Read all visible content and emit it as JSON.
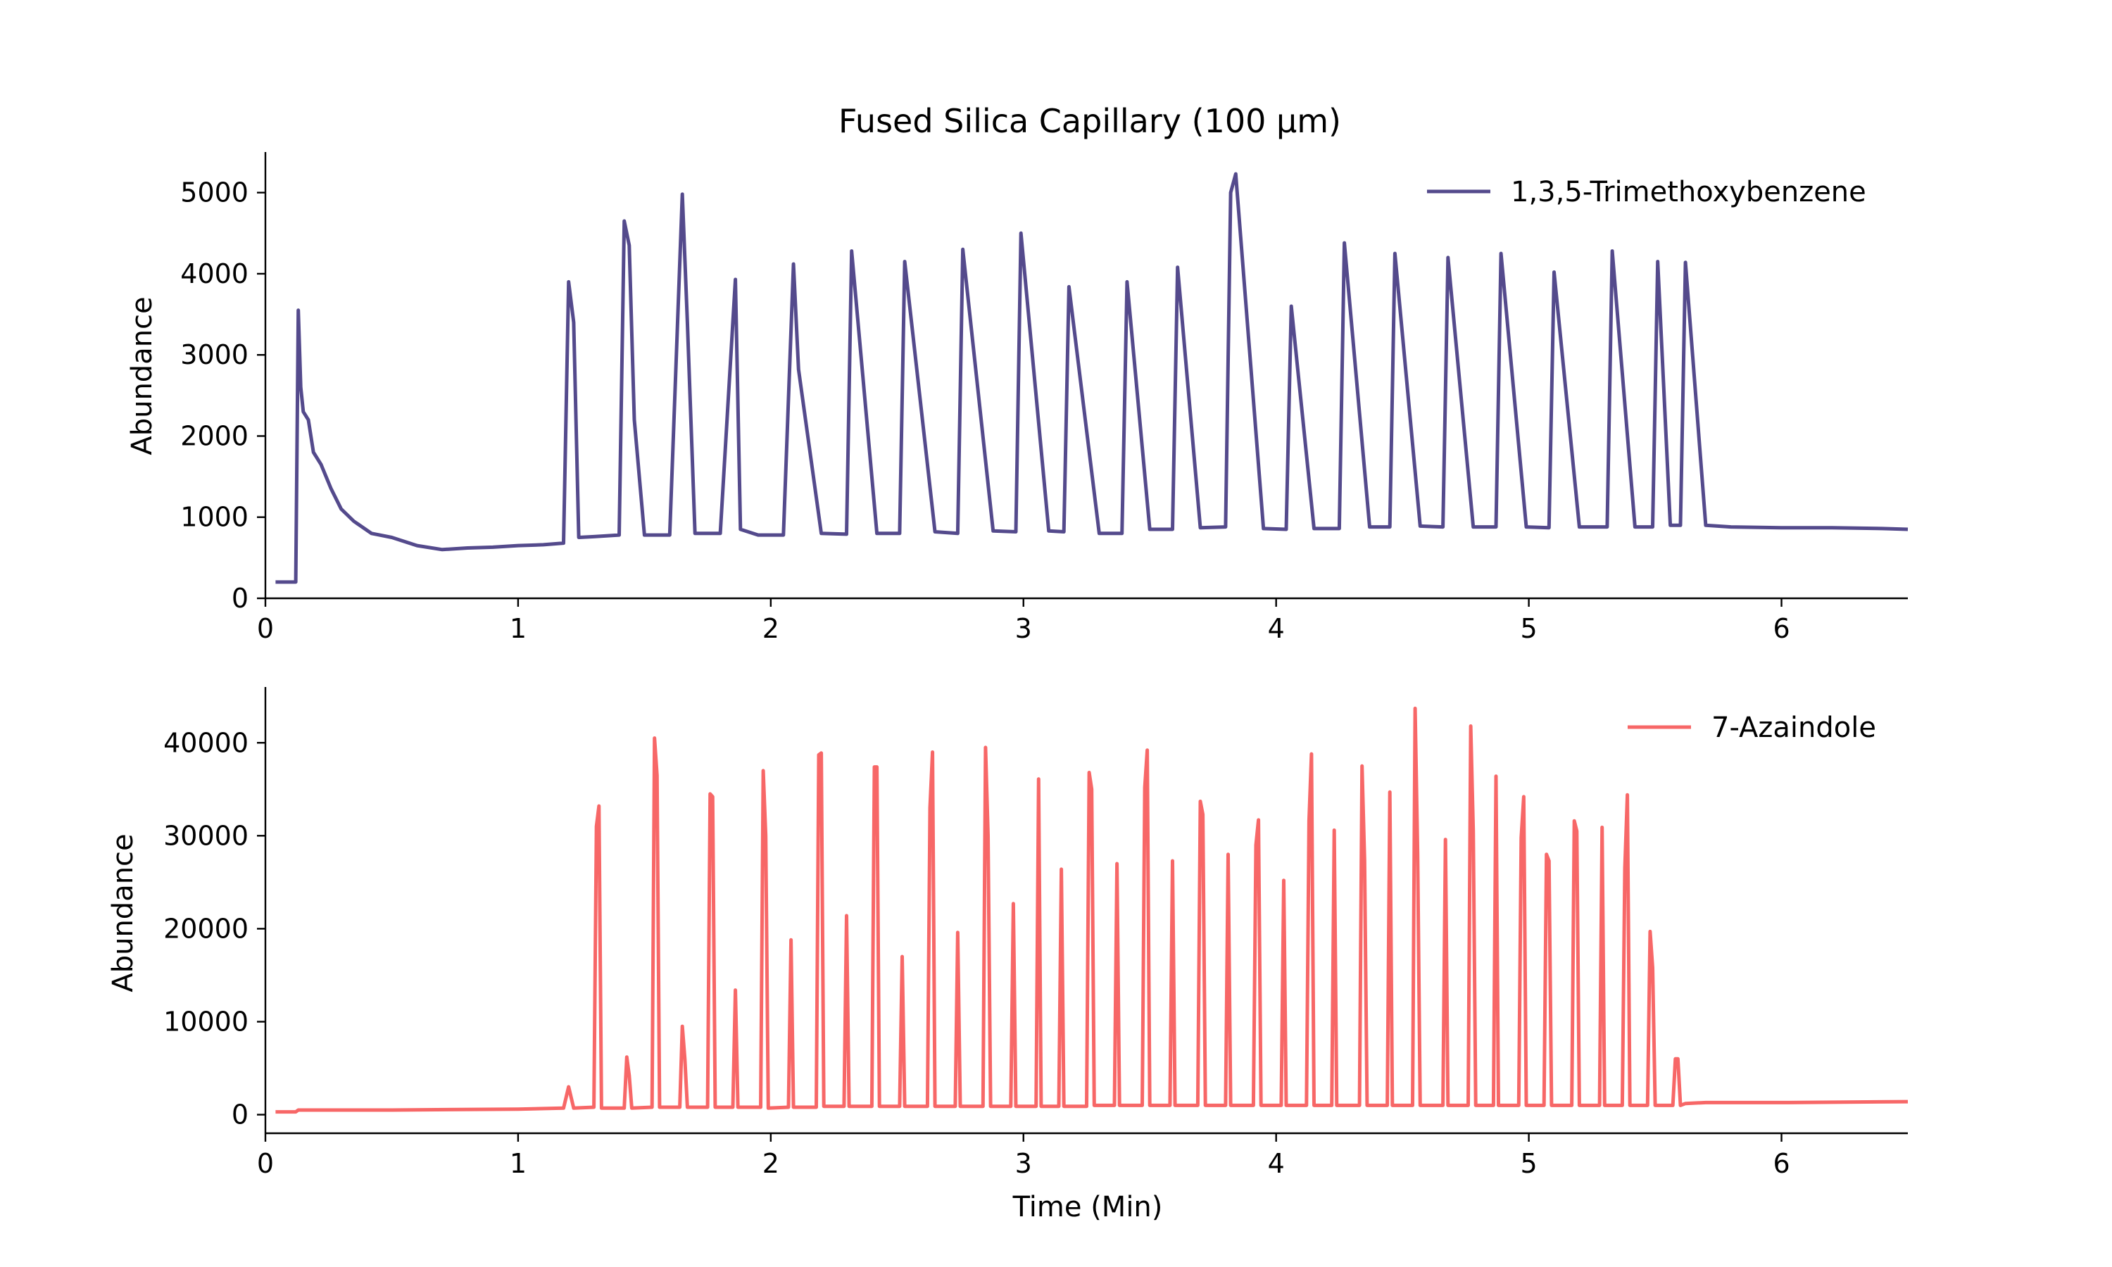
{
  "chart_data": {
    "type": "line",
    "title": "Fused Silica Capillary (100 µm)",
    "xlabel": "Time (Min)",
    "xlim": [
      0,
      6.5
    ],
    "xticks": [
      0,
      1,
      2,
      3,
      4,
      5,
      6
    ],
    "panels": [
      {
        "ylabel": "Abundance",
        "ylim": [
          0,
          5500
        ],
        "yticks": [
          0,
          1000,
          2000,
          3000,
          4000,
          5000
        ],
        "legend_position": "top-right",
        "series": [
          {
            "name": "1,3,5-Trimethoxybenzene",
            "color": "#544a8c",
            "x": [
              0.04,
              0.12,
              0.13,
              0.14,
              0.15,
              0.17,
              0.19,
              0.22,
              0.26,
              0.3,
              0.35,
              0.42,
              0.5,
              0.6,
              0.7,
              0.8,
              0.9,
              1.0,
              1.1,
              1.18,
              1.2,
              1.22,
              1.24,
              1.3,
              1.4,
              1.42,
              1.44,
              1.46,
              1.5,
              1.6,
              1.65,
              1.67,
              1.7,
              1.8,
              1.86,
              1.88,
              1.95,
              2.05,
              2.09,
              2.11,
              2.2,
              2.3,
              2.32,
              2.42,
              2.51,
              2.53,
              2.65,
              2.74,
              2.76,
              2.88,
              2.97,
              2.99,
              3.1,
              3.16,
              3.18,
              3.3,
              3.39,
              3.41,
              3.5,
              3.59,
              3.61,
              3.7,
              3.8,
              3.82,
              3.84,
              3.95,
              4.04,
              4.06,
              4.15,
              4.25,
              4.27,
              4.37,
              4.45,
              4.47,
              4.57,
              4.66,
              4.68,
              4.78,
              4.87,
              4.89,
              4.99,
              5.08,
              5.1,
              5.2,
              5.31,
              5.33,
              5.42,
              5.49,
              5.51,
              5.56,
              5.6,
              5.62,
              5.7,
              5.8,
              6.0,
              6.2,
              6.4,
              6.5
            ],
            "y": [
              200,
              200,
              3550,
              2600,
              2300,
              2200,
              1800,
              1650,
              1350,
              1100,
              950,
              800,
              750,
              650,
              600,
              620,
              630,
              650,
              660,
              680,
              3900,
              3400,
              750,
              760,
              780,
              4650,
              4350,
              2200,
              780,
              780,
              4980,
              3400,
              800,
              800,
              3930,
              850,
              780,
              780,
              4120,
              2820,
              800,
              790,
              4280,
              800,
              800,
              4150,
              820,
              800,
              4300,
              830,
              820,
              4500,
              830,
              820,
              3840,
              800,
              800,
              3900,
              850,
              850,
              4080,
              870,
              880,
              5000,
              5230,
              860,
              850,
              3600,
              860,
              860,
              4380,
              880,
              880,
              4250,
              890,
              880,
              4200,
              880,
              880,
              4250,
              880,
              870,
              4020,
              880,
              880,
              4280,
              880,
              880,
              4150,
              900,
              900,
              4140,
              900,
              880,
              870,
              870,
              860,
              850
            ]
          }
        ]
      },
      {
        "ylabel": "Abundance",
        "ylim": [
          -2000,
          46000
        ],
        "yticks": [
          0,
          10000,
          20000,
          30000,
          40000
        ],
        "legend_position": "top-right",
        "series": [
          {
            "name": "7-Azaindole",
            "color": "#f76767",
            "x": [
              0.04,
              0.12,
              0.13,
              0.5,
              1.0,
              1.18,
              1.2,
              1.22,
              1.3,
              1.31,
              1.32,
              1.33,
              1.34,
              1.42,
              1.43,
              1.44,
              1.45,
              1.53,
              1.54,
              1.55,
              1.56,
              1.57,
              1.64,
              1.65,
              1.66,
              1.67,
              1.75,
              1.76,
              1.77,
              1.78,
              1.85,
              1.86,
              1.87,
              1.96,
              1.97,
              1.98,
              1.99,
              2.07,
              2.08,
              2.09,
              2.18,
              2.19,
              2.2,
              2.21,
              2.29,
              2.3,
              2.31,
              2.4,
              2.41,
              2.42,
              2.43,
              2.51,
              2.52,
              2.53,
              2.62,
              2.63,
              2.64,
              2.65,
              2.73,
              2.74,
              2.75,
              2.84,
              2.85,
              2.86,
              2.87,
              2.95,
              2.96,
              2.97,
              3.05,
              3.06,
              3.07,
              3.14,
              3.15,
              3.16,
              3.25,
              3.26,
              3.27,
              3.28,
              3.36,
              3.37,
              3.38,
              3.47,
              3.48,
              3.49,
              3.5,
              3.58,
              3.59,
              3.6,
              3.69,
              3.7,
              3.71,
              3.72,
              3.8,
              3.81,
              3.82,
              3.91,
              3.92,
              3.93,
              3.94,
              4.02,
              4.03,
              4.04,
              4.12,
              4.13,
              4.14,
              4.15,
              4.22,
              4.23,
              4.24,
              4.33,
              4.34,
              4.35,
              4.36,
              4.44,
              4.45,
              4.46,
              4.54,
              4.55,
              4.56,
              4.57,
              4.66,
              4.67,
              4.68,
              4.76,
              4.77,
              4.78,
              4.79,
              4.86,
              4.87,
              4.88,
              4.96,
              4.97,
              4.98,
              4.99,
              5.06,
              5.07,
              5.08,
              5.09,
              5.17,
              5.18,
              5.19,
              5.2,
              5.28,
              5.29,
              5.3,
              5.37,
              5.38,
              5.39,
              5.4,
              5.47,
              5.48,
              5.49,
              5.5,
              5.57,
              5.58,
              5.59,
              5.6,
              5.62,
              5.7,
              6.0,
              6.5
            ],
            "y": [
              300,
              300,
              500,
              500,
              600,
              700,
              3000,
              700,
              800,
              31000,
              33200,
              700,
              700,
              700,
              6200,
              4200,
              700,
              800,
              40500,
              36500,
              800,
              800,
              800,
              9500,
              6000,
              800,
              800,
              34500,
              34200,
              800,
              800,
              13400,
              800,
              800,
              37000,
              30000,
              700,
              800,
              18800,
              800,
              800,
              38700,
              38900,
              900,
              900,
              21400,
              900,
              900,
              37400,
              37400,
              900,
              900,
              17000,
              900,
              900,
              33000,
              39000,
              900,
              900,
              19600,
              900,
              900,
              39500,
              30000,
              900,
              900,
              22700,
              900,
              900,
              36100,
              900,
              900,
              26400,
              900,
              900,
              36800,
              35000,
              1000,
              1000,
              27000,
              1000,
              1000,
              35200,
              39200,
              1000,
              1000,
              27300,
              1000,
              1000,
              33700,
              32300,
              1000,
              1000,
              28000,
              1000,
              1000,
              29000,
              31700,
              1000,
              1000,
              25200,
              1000,
              1000,
              31600,
              38800,
              1000,
              1000,
              30600,
              1000,
              1000,
              37500,
              27400,
              1000,
              1000,
              34700,
              1000,
              1000,
              43700,
              28000,
              1000,
              1000,
              29600,
              1000,
              1000,
              41800,
              30500,
              1000,
              1000,
              36400,
              1000,
              1000,
              29800,
              34200,
              1000,
              1000,
              28000,
              27300,
              1000,
              1000,
              31600,
              30500,
              1000,
              1000,
              30900,
              1000,
              1000,
              26500,
              34400,
              1000,
              1000,
              19700,
              15800,
              1000,
              1000,
              6000,
              6000,
              1000,
              1200,
              1300,
              1300,
              1400
            ]
          }
        ]
      }
    ]
  }
}
